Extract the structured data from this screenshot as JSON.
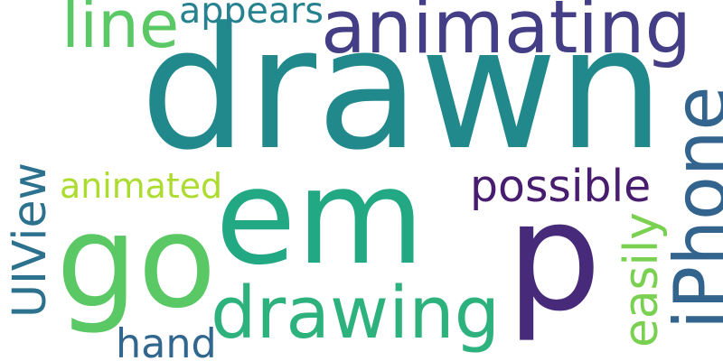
{
  "words": [
    {
      "key": "drawn",
      "text": "drawn",
      "color": "#21898c",
      "vertical": false
    },
    {
      "key": "p",
      "text": "p",
      "color": "#472b7a",
      "vertical": false
    },
    {
      "key": "em",
      "text": "em",
      "color": "#23a884",
      "vertical": false
    },
    {
      "key": "go",
      "text": "go",
      "color": "#5ac864",
      "vertical": false
    },
    {
      "key": "animating",
      "text": "animating",
      "color": "#433e85",
      "vertical": false
    },
    {
      "key": "drawing",
      "text": "drawing",
      "color": "#2db27d",
      "vertical": false
    },
    {
      "key": "uiview",
      "text": "UIView",
      "color": "#2c718e",
      "vertical": true
    },
    {
      "key": "iphone",
      "text": "iPhone",
      "color": "#32648e",
      "vertical": true
    },
    {
      "key": "line",
      "text": "line",
      "color": "#5ac864",
      "vertical": false
    },
    {
      "key": "possible",
      "text": "possible",
      "color": "#481c6e",
      "vertical": false
    },
    {
      "key": "animated",
      "text": "animated",
      "color": "#addc30",
      "vertical": false
    },
    {
      "key": "appears",
      "text": "appears",
      "color": "#26828e",
      "vertical": false
    },
    {
      "key": "easily",
      "text": "easily",
      "color": "#7ad151",
      "vertical": true
    },
    {
      "key": "hand",
      "text": "hand",
      "color": "#31668e",
      "vertical": false
    }
  ]
}
